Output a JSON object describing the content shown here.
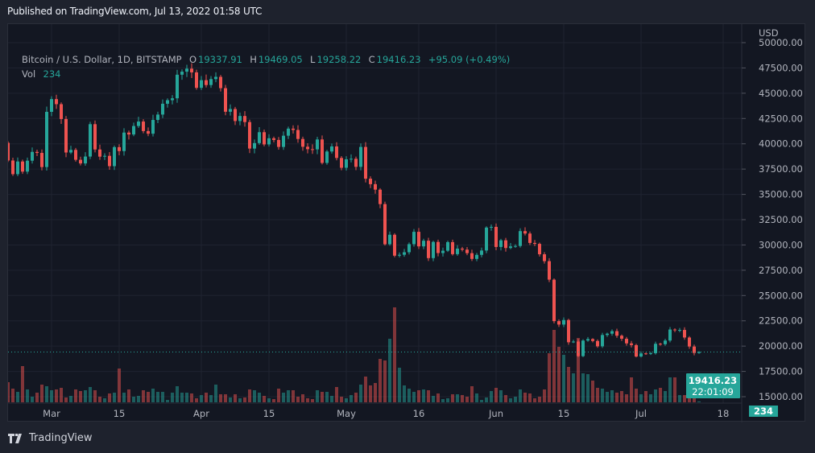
{
  "header": {
    "published": "Published on TradingView.com, Jul 13, 2022 01:58 UTC"
  },
  "legend": {
    "symbol": "Bitcoin / U.S. Dollar, 1D, BITSTAMP",
    "open_label": "O",
    "open": "19337.91",
    "high_label": "H",
    "high": "19469.05",
    "low_label": "L",
    "low": "19258.22",
    "close_label": "C",
    "close": "19416.23",
    "change": "+95.09 (+0.49%)",
    "vol_label": "Vol",
    "vol": "234"
  },
  "price_axis": {
    "currency": "USD",
    "current_price": "19416.23",
    "countdown": "22:01:09",
    "current_volume": "234"
  },
  "footer": {
    "brand": "TradingView"
  },
  "colors": {
    "up": "#26a69a",
    "down": "#ef5350",
    "background": "#131722",
    "grid": "#1f2330"
  },
  "chart_data": {
    "type": "candlestick",
    "title": "Bitcoin / U.S. Dollar, 1D, BITSTAMP",
    "ylabel": "USD",
    "ylim": [
      15000,
      50000
    ],
    "y_ticks": [
      "50000.00",
      "47500.00",
      "45000.00",
      "42500.00",
      "40000.00",
      "37500.00",
      "35000.00",
      "32500.00",
      "30000.00",
      "27500.00",
      "25000.00",
      "22500.00",
      "20000.00",
      "17500.00",
      "15000.00"
    ],
    "x_ticks": [
      {
        "label": "Mar",
        "date": "2022-03-01"
      },
      {
        "label": "15",
        "date": "2022-03-15"
      },
      {
        "label": "Apr",
        "date": "2022-04-01"
      },
      {
        "label": "15",
        "date": "2022-04-15"
      },
      {
        "label": "May",
        "date": "2022-05-01"
      },
      {
        "label": "16",
        "date": "2022-05-16"
      },
      {
        "label": "Jun",
        "date": "2022-06-01"
      },
      {
        "label": "15",
        "date": "2022-06-15"
      },
      {
        "label": "Jul",
        "date": "2022-07-01"
      },
      {
        "label": "18",
        "date": "2022-07-18"
      }
    ],
    "grid": true,
    "first_open": 40100,
    "columns": [
      "date",
      "close",
      "volume"
    ],
    "candles": [
      [
        "2022-02-20",
        38350,
        5000
      ],
      [
        "2022-02-21",
        37000,
        3400
      ],
      [
        "2022-02-22",
        38250,
        2600
      ],
      [
        "2022-02-23",
        37250,
        9000
      ],
      [
        "2022-02-24",
        38330,
        3200
      ],
      [
        "2022-02-25",
        39200,
        1400
      ],
      [
        "2022-02-26",
        39100,
        2400
      ],
      [
        "2022-02-27",
        37700,
        4400
      ],
      [
        "2022-02-28",
        43160,
        4000
      ],
      [
        "2022-03-01",
        44420,
        3000
      ],
      [
        "2022-03-02",
        43920,
        3200
      ],
      [
        "2022-03-03",
        42450,
        3600
      ],
      [
        "2022-03-04",
        39140,
        1200
      ],
      [
        "2022-03-05",
        39400,
        1600
      ],
      [
        "2022-03-06",
        38420,
        3200
      ],
      [
        "2022-03-07",
        38060,
        2800
      ],
      [
        "2022-03-08",
        38740,
        3000
      ],
      [
        "2022-03-09",
        41940,
        3800
      ],
      [
        "2022-03-10",
        39440,
        3000
      ],
      [
        "2022-03-11",
        38730,
        1400
      ],
      [
        "2022-03-12",
        38810,
        1000
      ],
      [
        "2022-03-13",
        37790,
        2200
      ],
      [
        "2022-03-14",
        39670,
        2400
      ],
      [
        "2022-03-15",
        39280,
        8400
      ],
      [
        "2022-03-16",
        41110,
        2400
      ],
      [
        "2022-03-17",
        40920,
        3200
      ],
      [
        "2022-03-18",
        41760,
        1400
      ],
      [
        "2022-03-19",
        42200,
        1600
      ],
      [
        "2022-03-20",
        41260,
        3000
      ],
      [
        "2022-03-21",
        41000,
        2600
      ],
      [
        "2022-03-22",
        42360,
        3400
      ],
      [
        "2022-03-23",
        42890,
        2600
      ],
      [
        "2022-03-24",
        43960,
        2600
      ],
      [
        "2022-03-25",
        44310,
        600
      ],
      [
        "2022-03-26",
        44500,
        2400
      ],
      [
        "2022-03-27",
        46830,
        4000
      ],
      [
        "2022-03-28",
        47130,
        2400
      ],
      [
        "2022-03-29",
        47430,
        2400
      ],
      [
        "2022-03-30",
        47060,
        2200
      ],
      [
        "2022-03-31",
        45530,
        1000
      ],
      [
        "2022-04-01",
        46290,
        1800
      ],
      [
        "2022-04-02",
        45810,
        2400
      ],
      [
        "2022-04-03",
        46400,
        1800
      ],
      [
        "2022-04-04",
        46620,
        4400
      ],
      [
        "2022-04-05",
        45500,
        2000
      ],
      [
        "2022-04-06",
        43170,
        2000
      ],
      [
        "2022-04-07",
        43440,
        1200
      ],
      [
        "2022-04-08",
        42250,
        2000
      ],
      [
        "2022-04-09",
        42750,
        1000
      ],
      [
        "2022-04-10",
        42150,
        1200
      ],
      [
        "2022-04-11",
        39530,
        3200
      ],
      [
        "2022-04-12",
        40070,
        3000
      ],
      [
        "2022-04-13",
        41150,
        2400
      ],
      [
        "2022-04-14",
        39940,
        1600
      ],
      [
        "2022-04-15",
        40550,
        1000
      ],
      [
        "2022-04-16",
        40380,
        800
      ],
      [
        "2022-04-17",
        39690,
        3400
      ],
      [
        "2022-04-18",
        40800,
        2400
      ],
      [
        "2022-04-19",
        41500,
        3000
      ],
      [
        "2022-04-20",
        41370,
        3000
      ],
      [
        "2022-04-21",
        40480,
        1400
      ],
      [
        "2022-04-22",
        39710,
        2000
      ],
      [
        "2022-04-23",
        39470,
        1000
      ],
      [
        "2022-04-24",
        39450,
        800
      ],
      [
        "2022-04-25",
        40430,
        3000
      ],
      [
        "2022-04-26",
        38110,
        2600
      ],
      [
        "2022-04-27",
        39240,
        2600
      ],
      [
        "2022-04-28",
        39740,
        1600
      ],
      [
        "2022-04-29",
        38600,
        3800
      ],
      [
        "2022-04-30",
        37630,
        1400
      ],
      [
        "2022-05-01",
        38470,
        1000
      ],
      [
        "2022-05-02",
        38520,
        1800
      ],
      [
        "2022-05-03",
        37720,
        2400
      ],
      [
        "2022-05-04",
        39690,
        4400
      ],
      [
        "2022-05-05",
        36550,
        6400
      ],
      [
        "2022-05-06",
        36010,
        4200
      ],
      [
        "2022-05-07",
        35470,
        4800
      ],
      [
        "2022-05-08",
        34040,
        10800
      ],
      [
        "2022-05-09",
        30070,
        10400
      ],
      [
        "2022-05-10",
        31010,
        15800
      ],
      [
        "2022-05-11",
        28940,
        23600
      ],
      [
        "2022-05-12",
        29030,
        8600
      ],
      [
        "2022-05-13",
        29280,
        4200
      ],
      [
        "2022-05-14",
        30080,
        3400
      ],
      [
        "2022-05-15",
        31300,
        2600
      ],
      [
        "2022-05-16",
        29860,
        3000
      ],
      [
        "2022-05-17",
        30420,
        3200
      ],
      [
        "2022-05-18",
        28700,
        3000
      ],
      [
        "2022-05-19",
        30300,
        1600
      ],
      [
        "2022-05-20",
        29200,
        2200
      ],
      [
        "2022-05-21",
        29430,
        800
      ],
      [
        "2022-05-22",
        30280,
        1000
      ],
      [
        "2022-05-23",
        29090,
        2000
      ],
      [
        "2022-05-24",
        29640,
        2000
      ],
      [
        "2022-05-25",
        29540,
        1800
      ],
      [
        "2022-05-26",
        29190,
        1400
      ],
      [
        "2022-05-27",
        28620,
        4000
      ],
      [
        "2022-05-28",
        29020,
        2200
      ],
      [
        "2022-05-29",
        29450,
        600
      ],
      [
        "2022-05-30",
        31720,
        1200
      ],
      [
        "2022-05-31",
        31790,
        2800
      ],
      [
        "2022-06-01",
        29800,
        3600
      ],
      [
        "2022-06-02",
        30460,
        3000
      ],
      [
        "2022-06-03",
        29700,
        1800
      ],
      [
        "2022-06-04",
        29860,
        1000
      ],
      [
        "2022-06-05",
        29900,
        1400
      ],
      [
        "2022-06-06",
        31370,
        3200
      ],
      [
        "2022-06-07",
        31130,
        2400
      ],
      [
        "2022-06-08",
        30200,
        2200
      ],
      [
        "2022-06-09",
        30110,
        1000
      ],
      [
        "2022-06-10",
        29080,
        1400
      ],
      [
        "2022-06-11",
        28400,
        3200
      ],
      [
        "2022-06-12",
        26570,
        12200
      ],
      [
        "2022-06-13",
        22470,
        18000
      ],
      [
        "2022-06-14",
        22130,
        13800
      ],
      [
        "2022-06-15",
        22580,
        11800
      ],
      [
        "2022-06-16",
        20380,
        8800
      ],
      [
        "2022-06-17",
        20450,
        7200
      ],
      [
        "2022-06-18",
        19010,
        16000
      ],
      [
        "2022-06-19",
        20550,
        7200
      ],
      [
        "2022-06-20",
        20700,
        7000
      ],
      [
        "2022-06-21",
        20510,
        5400
      ],
      [
        "2022-06-22",
        19980,
        3600
      ],
      [
        "2022-06-23",
        21100,
        3400
      ],
      [
        "2022-06-24",
        21230,
        2600
      ],
      [
        "2022-06-25",
        21480,
        3000
      ],
      [
        "2022-06-26",
        21030,
        2400
      ],
      [
        "2022-06-27",
        20730,
        2800
      ],
      [
        "2022-06-28",
        20270,
        2000
      ],
      [
        "2022-06-29",
        20100,
        6200
      ],
      [
        "2022-06-30",
        18970,
        3400
      ],
      [
        "2022-07-01",
        19280,
        2000
      ],
      [
        "2022-07-02",
        19240,
        2800
      ],
      [
        "2022-07-03",
        19300,
        2000
      ],
      [
        "2022-07-04",
        20230,
        3200
      ],
      [
        "2022-07-05",
        20190,
        3600
      ],
      [
        "2022-07-06",
        20550,
        2800
      ],
      [
        "2022-07-07",
        21640,
        6200
      ],
      [
        "2022-07-08",
        21590,
        6200
      ],
      [
        "2022-07-09",
        21600,
        1800
      ],
      [
        "2022-07-10",
        20850,
        1800
      ],
      [
        "2022-07-11",
        19960,
        2000
      ],
      [
        "2022-07-12",
        19321,
        2400
      ],
      [
        "2022-07-13",
        19416.23,
        234
      ]
    ]
  }
}
